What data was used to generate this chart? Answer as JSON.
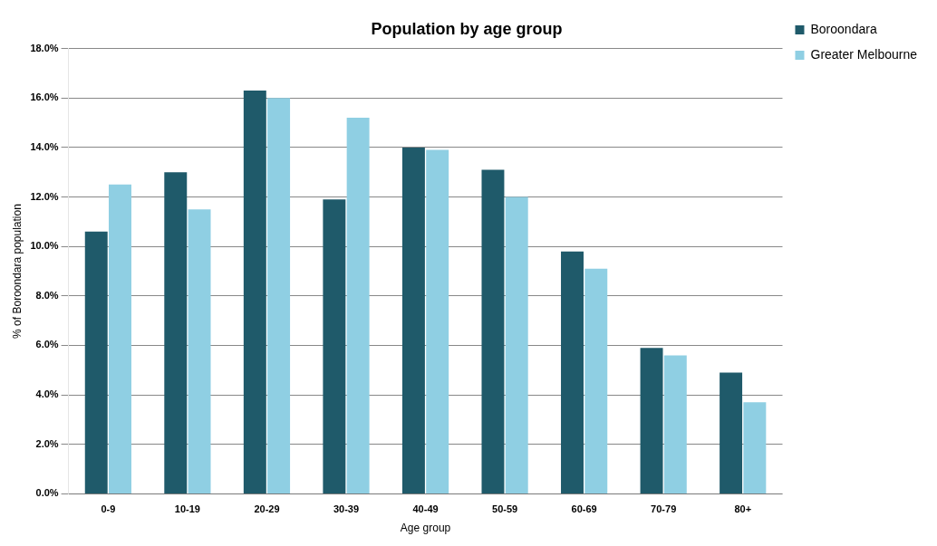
{
  "chart_data": {
    "type": "bar",
    "title": "Population by age group",
    "xlabel": "Age group",
    "ylabel": "% of Boroondara population",
    "categories": [
      "0-9",
      "10-19",
      "20-29",
      "30-39",
      "40-49",
      "50-59",
      "60-69",
      "70-79",
      "80+"
    ],
    "series": [
      {
        "name": "Boroondara",
        "color": "#1f5a6a",
        "values": [
          10.6,
          13.0,
          16.3,
          11.9,
          14.0,
          13.1,
          9.8,
          5.9,
          4.9
        ]
      },
      {
        "name": "Greater Melbourne",
        "color": "#8fcfe3",
        "values": [
          12.5,
          11.5,
          16.0,
          15.2,
          13.9,
          12.0,
          9.1,
          5.6,
          3.7
        ]
      }
    ],
    "ylim": [
      0,
      18
    ],
    "yticks": [
      {
        "value": 0,
        "label": "0.0%"
      },
      {
        "value": 2,
        "label": "2.0%"
      },
      {
        "value": 4,
        "label": "4.0%"
      },
      {
        "value": 6,
        "label": "6.0%"
      },
      {
        "value": 8,
        "label": "8.0%"
      },
      {
        "value": 10,
        "label": "10.0%"
      },
      {
        "value": 12,
        "label": "12.0%"
      },
      {
        "value": 14,
        "label": "14.0%"
      },
      {
        "value": 16,
        "label": "16.0%"
      },
      {
        "value": 18,
        "label": "18.0%"
      }
    ],
    "grid": "y",
    "legend": "top right"
  }
}
